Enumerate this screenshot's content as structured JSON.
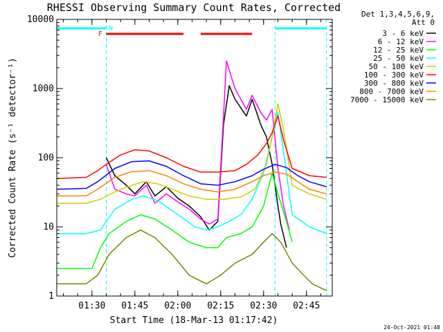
{
  "chart_data": {
    "type": "line",
    "title": "RHESSI Observing Summary Count Rates, Corrected",
    "xlabel": "Start Time (18-Mar-13 01:17:42)",
    "ylabel": "Corrected Count Rate (s⁻¹ detector⁻¹)",
    "y_scale": "log",
    "ylim": [
      1,
      10000
    ],
    "y_ticks": [
      1,
      10,
      100,
      1000,
      10000
    ],
    "y_tick_labels": [
      "1",
      "10",
      "100",
      "1000",
      "10000"
    ],
    "xlim": [
      "01:17:42",
      "02:54:00"
    ],
    "x_ticks": [
      "01:30",
      "01:45",
      "02:00",
      "02:15",
      "02:30",
      "02:45"
    ],
    "legend_header": [
      "Det 1,3,4,5,6,9,",
      "Att 0"
    ],
    "legend_position": "right, outside plot",
    "flag_labels": [
      "F",
      "N"
    ],
    "night_intervals": [
      [
        "01:17:42",
        "01:35:00"
      ],
      [
        "02:34:00",
        "02:52:00"
      ]
    ],
    "flare_intervals": [
      [
        "01:35:00",
        "02:02:00"
      ],
      [
        "02:08:00",
        "02:26:00"
      ]
    ],
    "series": [
      {
        "name": "3 - 6 keV",
        "color": "#000000",
        "x": [
          "01:35",
          "01:38",
          "01:42",
          "01:45",
          "01:49",
          "01:52",
          "01:56",
          "02:00",
          "02:04",
          "02:08",
          "02:11",
          "02:14",
          "02:16",
          "02:18",
          "02:20",
          "02:24",
          "02:26",
          "02:29",
          "02:31",
          "02:33",
          "02:35",
          "02:36",
          "02:38"
        ],
        "y": [
          100,
          55,
          40,
          30,
          45,
          28,
          38,
          26,
          20,
          14,
          9,
          12,
          300,
          1100,
          700,
          400,
          700,
          300,
          200,
          80,
          20,
          11,
          5
        ]
      },
      {
        "name": "6 - 12 keV",
        "color": "#ff00ff",
        "x": [
          "01:35",
          "01:38",
          "01:42",
          "01:45",
          "01:49",
          "01:52",
          "01:56",
          "02:00",
          "02:04",
          "02:08",
          "02:11",
          "02:14",
          "02:16",
          "02:17",
          "02:20",
          "02:24",
          "02:26",
          "02:29",
          "02:31",
          "02:33",
          "02:35",
          "02:37",
          "02:39"
        ],
        "y": [
          80,
          35,
          30,
          28,
          40,
          22,
          30,
          23,
          18,
          13,
          11,
          13,
          400,
          2500,
          1000,
          500,
          800,
          450,
          350,
          500,
          70,
          20,
          9
        ]
      },
      {
        "name": "12 - 25 keV",
        "color": "#00ff00",
        "x": [
          "01:17:42",
          "01:25",
          "01:30",
          "01:33",
          "01:36",
          "01:42",
          "01:47",
          "01:52",
          "01:58",
          "02:04",
          "02:10",
          "02:14",
          "02:17",
          "02:22",
          "02:26",
          "02:30",
          "02:33",
          "02:35",
          "02:38",
          "02:40"
        ],
        "y": [
          2.5,
          2.5,
          2.5,
          5,
          8,
          12,
          15,
          13,
          9,
          6,
          5,
          5,
          7,
          8,
          10,
          20,
          60,
          30,
          12,
          6
        ]
      },
      {
        "name": "25 - 50 keV",
        "color": "#00ffff",
        "x": [
          "01:17:42",
          "01:28",
          "01:33",
          "01:38",
          "01:44",
          "01:48",
          "01:53",
          "02:00",
          "02:06",
          "02:10",
          "02:14",
          "02:18",
          "02:22",
          "02:26",
          "02:30",
          "02:33",
          "02:35",
          "02:37",
          "02:40",
          "02:46",
          "02:52"
        ],
        "y": [
          8,
          8,
          9,
          18,
          25,
          28,
          24,
          15,
          10,
          9,
          10,
          12,
          15,
          25,
          60,
          200,
          450,
          120,
          15,
          10,
          8
        ]
      },
      {
        "name": "50 - 100 keV",
        "color": "#cccc00",
        "x": [
          "01:17:42",
          "01:28",
          "01:33",
          "01:38",
          "01:44",
          "01:48",
          "01:53",
          "01:58",
          "02:04",
          "02:10",
          "02:16",
          "02:22",
          "02:27",
          "02:31",
          "02:33",
          "02:35",
          "02:37",
          "02:40",
          "02:46",
          "02:52"
        ],
        "y": [
          22,
          22,
          25,
          32,
          40,
          45,
          42,
          35,
          28,
          25,
          25,
          27,
          35,
          80,
          200,
          600,
          250,
          40,
          30,
          25
        ]
      },
      {
        "name": "100 - 300 keV",
        "color": "#ff0000",
        "x": [
          "01:17:42",
          "01:28",
          "01:32",
          "01:35",
          "01:40",
          "01:45",
          "01:50",
          "01:56",
          "02:02",
          "02:08",
          "02:14",
          "02:20",
          "02:24",
          "02:28",
          "02:31",
          "02:33",
          "02:35",
          "02:37",
          "02:40",
          "02:46",
          "02:52"
        ],
        "y": [
          50,
          52,
          65,
          80,
          110,
          130,
          125,
          100,
          75,
          62,
          62,
          65,
          80,
          110,
          160,
          230,
          400,
          180,
          70,
          55,
          52
        ]
      },
      {
        "name": "300 - 800 keV",
        "color": "#0000ff",
        "x": [
          "01:17:42",
          "01:28",
          "01:32",
          "01:38",
          "01:44",
          "01:50",
          "01:56",
          "02:02",
          "02:08",
          "02:14",
          "02:20",
          "02:26",
          "02:30",
          "02:34",
          "02:38",
          "02:42",
          "02:46",
          "02:52"
        ],
        "y": [
          35,
          36,
          45,
          70,
          88,
          90,
          75,
          55,
          42,
          40,
          45,
          55,
          68,
          80,
          72,
          55,
          45,
          38
        ]
      },
      {
        "name": "800 - 7000 keV",
        "color": "#ff8000",
        "x": [
          "01:17:42",
          "01:28",
          "01:32",
          "01:38",
          "01:44",
          "01:50",
          "01:56",
          "02:02",
          "02:08",
          "02:14",
          "02:20",
          "02:26",
          "02:30",
          "02:34",
          "02:38",
          "02:42",
          "02:46",
          "02:52"
        ],
        "y": [
          28,
          28,
          35,
          52,
          63,
          65,
          55,
          42,
          35,
          32,
          35,
          45,
          55,
          62,
          58,
          45,
          35,
          30
        ]
      },
      {
        "name": "7000 - 15000 keV",
        "color": "#808000",
        "x": [
          "01:17:42",
          "01:28",
          "01:32",
          "01:36",
          "01:42",
          "01:47",
          "01:52",
          "01:58",
          "02:04",
          "02:10",
          "02:15",
          "02:20",
          "02:26",
          "02:30",
          "02:33",
          "02:36",
          "02:40",
          "02:44",
          "02:47",
          "02:52"
        ],
        "y": [
          1.5,
          1.5,
          2,
          4,
          7,
          9,
          7,
          4,
          2,
          1.5,
          2,
          3,
          4,
          6,
          8,
          6,
          3,
          2,
          1.5,
          1.2
        ]
      }
    ]
  },
  "print_date": "24-Oct-2021 01:48"
}
